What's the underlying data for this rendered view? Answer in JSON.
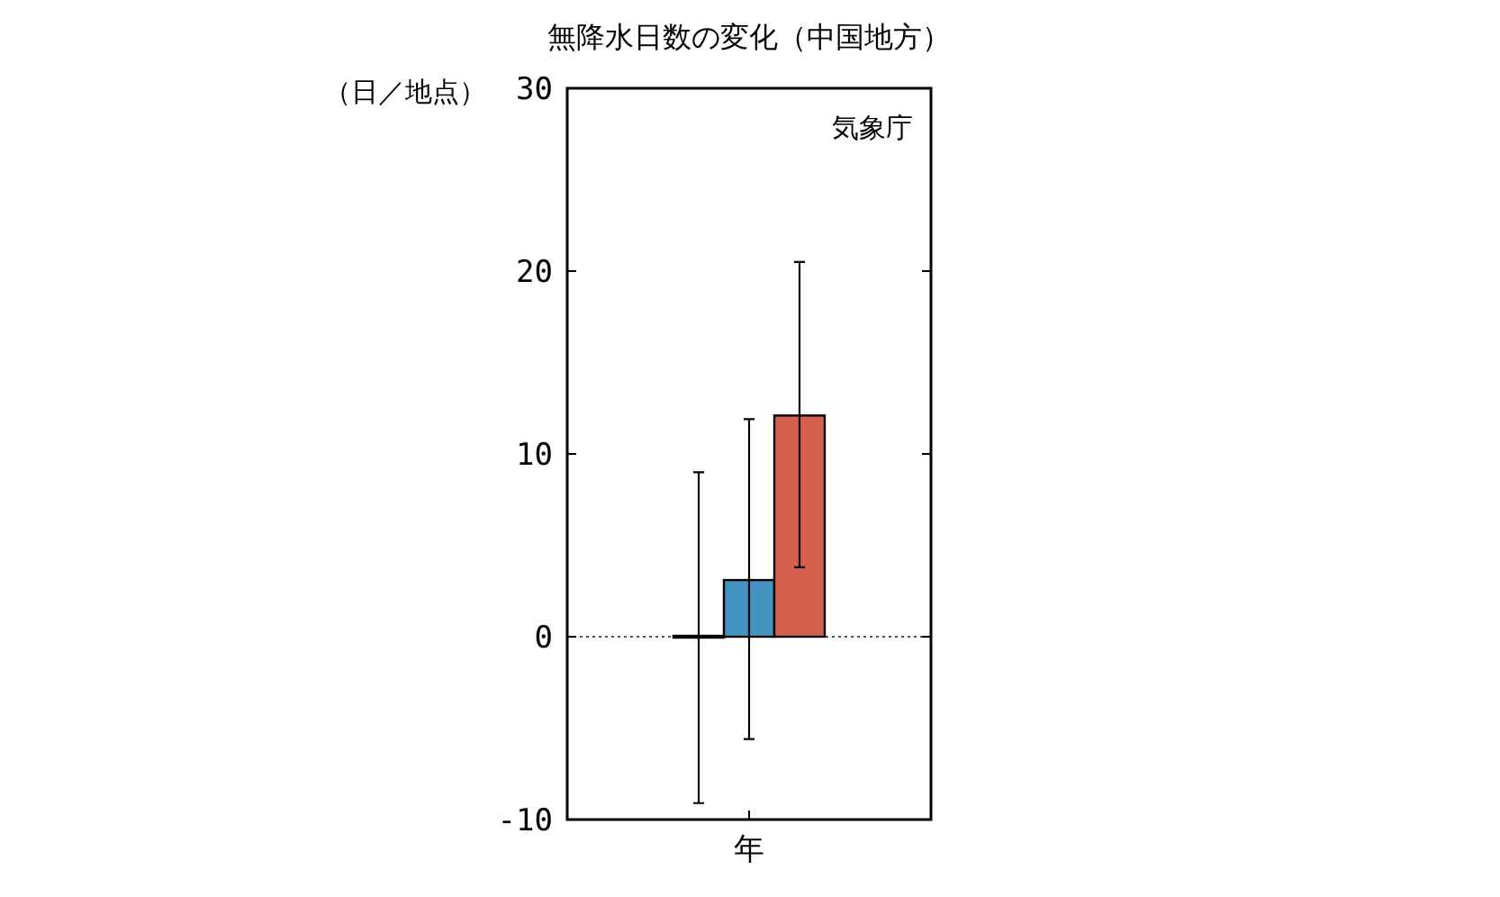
{
  "chart_data": {
    "type": "bar",
    "title": "無降水日数の変化（中国地方）",
    "ylabel": "（日／地点）",
    "categories": [
      "年"
    ],
    "series": [
      {
        "color": "#808080",
        "values": [
          0
        ],
        "errors": [
          [
            -9.1,
            9.0
          ]
        ]
      },
      {
        "color": "#4393c3",
        "values": [
          3.1
        ],
        "errors": [
          [
            -5.6,
            11.9
          ]
        ]
      },
      {
        "color": "#d6604d",
        "values": [
          12.1
        ],
        "errors": [
          [
            3.8,
            20.5
          ]
        ]
      }
    ],
    "ylim": [
      -10,
      30
    ],
    "yticks": [
      -10,
      0,
      10,
      20,
      30
    ],
    "grid": false,
    "ref_lines": [
      {
        "axis": "y",
        "value": 0,
        "line_style": "dotted",
        "color": "#555555"
      }
    ],
    "annotations": [
      "気象庁"
    ]
  }
}
